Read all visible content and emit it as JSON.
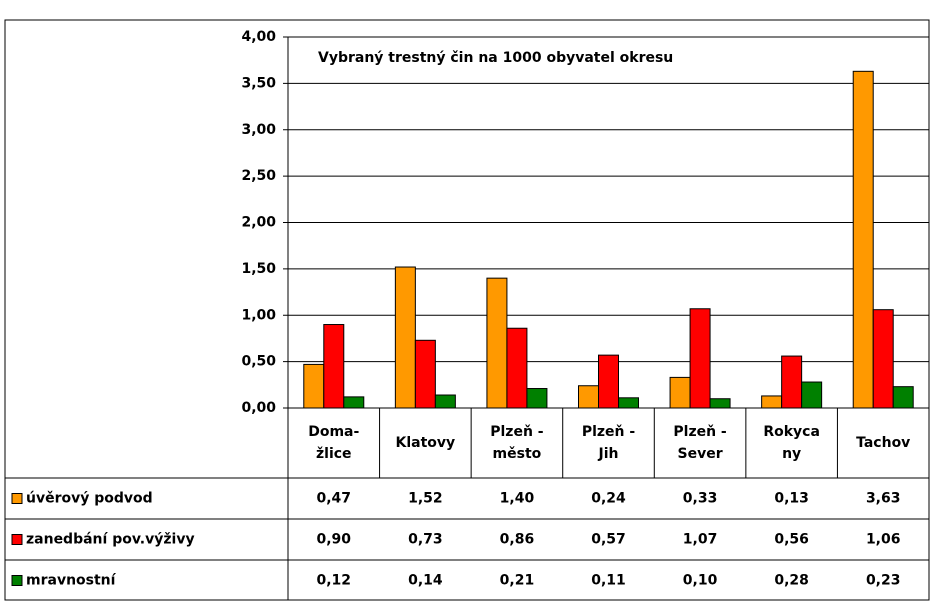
{
  "chart_data": {
    "type": "bar",
    "annotation": "Vybraný trestný čin na 1000 obyvatel okresu",
    "categories": [
      [
        "Doma-",
        "žlice"
      ],
      [
        "Klatovy"
      ],
      [
        "Plzeň -",
        "město"
      ],
      [
        "Plzeň -",
        "Jih"
      ],
      [
        "Plzeň -",
        "Sever"
      ],
      [
        "Rokyca",
        "ny"
      ],
      [
        "Tachov"
      ]
    ],
    "series": [
      {
        "name": "úvěrový podvod",
        "color": "#ff9900",
        "values": [
          0.47,
          1.52,
          1.4,
          0.24,
          0.33,
          0.13,
          3.63
        ],
        "value_labels": [
          "0,47",
          "1,52",
          "1,40",
          "0,24",
          "0,33",
          "0,13",
          "3,63"
        ]
      },
      {
        "name": "zanedbání pov.výživy",
        "color": "#ff0000",
        "values": [
          0.9,
          0.73,
          0.86,
          0.57,
          1.07,
          0.56,
          1.06
        ],
        "value_labels": [
          "0,90",
          "0,73",
          "0,86",
          "0,57",
          "1,07",
          "0,56",
          "1,06"
        ]
      },
      {
        "name": "mravnostní",
        "color": "#008000",
        "values": [
          0.12,
          0.14,
          0.21,
          0.11,
          0.1,
          0.28,
          0.23
        ],
        "value_labels": [
          "0,12",
          "0,14",
          "0,21",
          "0,11",
          "0,10",
          "0,28",
          "0,23"
        ]
      }
    ],
    "ylim": [
      0,
      4
    ],
    "yticks": [
      {
        "value": 0,
        "label": "0,00"
      },
      {
        "value": 0.5,
        "label": "0,50"
      },
      {
        "value": 1,
        "label": "1,00"
      },
      {
        "value": 1.5,
        "label": "1,50"
      },
      {
        "value": 2,
        "label": "2,00"
      },
      {
        "value": 2.5,
        "label": "2,50"
      },
      {
        "value": 3,
        "label": "3,00"
      },
      {
        "value": 3.5,
        "label": "3,50"
      },
      {
        "value": 4,
        "label": "4,00"
      }
    ],
    "grid": true
  }
}
